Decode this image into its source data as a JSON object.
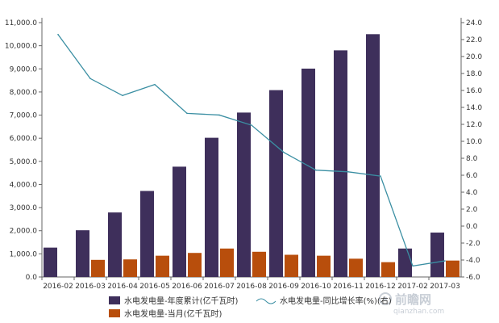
{
  "chart_data": {
    "type": "bar",
    "categories": [
      "2016-02",
      "2016-03",
      "2016-04",
      "2016-05",
      "2016-06",
      "2016-07",
      "2016-08",
      "2016-09",
      "2016-10",
      "2016-11",
      "2016-12",
      "2017-02",
      "2017-03"
    ],
    "series": [
      {
        "name": "水电发电量-年度累计(亿千瓦时)",
        "type": "bar",
        "axis": "left",
        "color": "#3e2f5b",
        "values": [
          1270,
          2020,
          2790,
          3720,
          4770,
          6020,
          7110,
          8080,
          9010,
          9800,
          10500,
          1230,
          1920
        ]
      },
      {
        "name": "水电发电量-当月(亿千瓦时)",
        "type": "bar",
        "axis": "left",
        "color": "#b84e0c",
        "values": [
          0,
          740,
          760,
          920,
          1040,
          1230,
          1090,
          960,
          920,
          790,
          640,
          0,
          710
        ]
      },
      {
        "name": "水电发电量-同比增长率(%)(右)",
        "type": "line",
        "axis": "right",
        "color": "#3b8fa3",
        "values": [
          22.6,
          17.4,
          15.4,
          16.7,
          13.3,
          13.1,
          11.9,
          8.7,
          6.6,
          6.4,
          5.9,
          -4.7,
          -4.1
        ]
      }
    ],
    "y_left": {
      "min": 0,
      "max": 11000,
      "step": 1000,
      "tick_labels": [
        "0.0",
        "1,000.0",
        "2,000.0",
        "3,000.0",
        "4,000.0",
        "5,000.0",
        "6,000.0",
        "7,000.0",
        "8,000.0",
        "9,000.0",
        "10,000.0",
        "11,000.0"
      ]
    },
    "y_right": {
      "min": -6,
      "max": 24,
      "step": 2,
      "tick_labels": [
        "-6.0",
        "-4.0",
        "-2.0",
        "0.0",
        "2.0",
        "4.0",
        "6.0",
        "8.0",
        "10.0",
        "12.0",
        "14.0",
        "16.0",
        "18.0",
        "20.0",
        "22.0",
        "24.0"
      ]
    },
    "grid": false,
    "legend_position": "bottom",
    "title": "",
    "xlabel": "",
    "ylabel": ""
  },
  "watermark": {
    "text": "前瞻网",
    "sub": "qianzhan.com"
  }
}
